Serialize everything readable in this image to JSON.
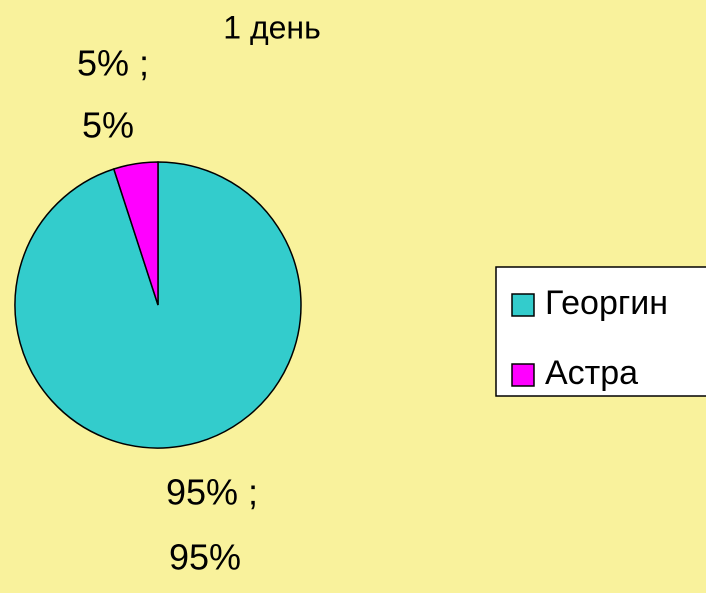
{
  "chart_data": {
    "type": "pie",
    "title": "1 день",
    "categories": [
      "Георгин",
      "Астра"
    ],
    "values": [
      95,
      5
    ],
    "value_labels": [
      [
        "95% ;",
        "95%"
      ],
      [
        "5% ;",
        "5%"
      ]
    ],
    "colors": [
      "#33cccc",
      "#ff00ff"
    ],
    "legend": "right"
  }
}
